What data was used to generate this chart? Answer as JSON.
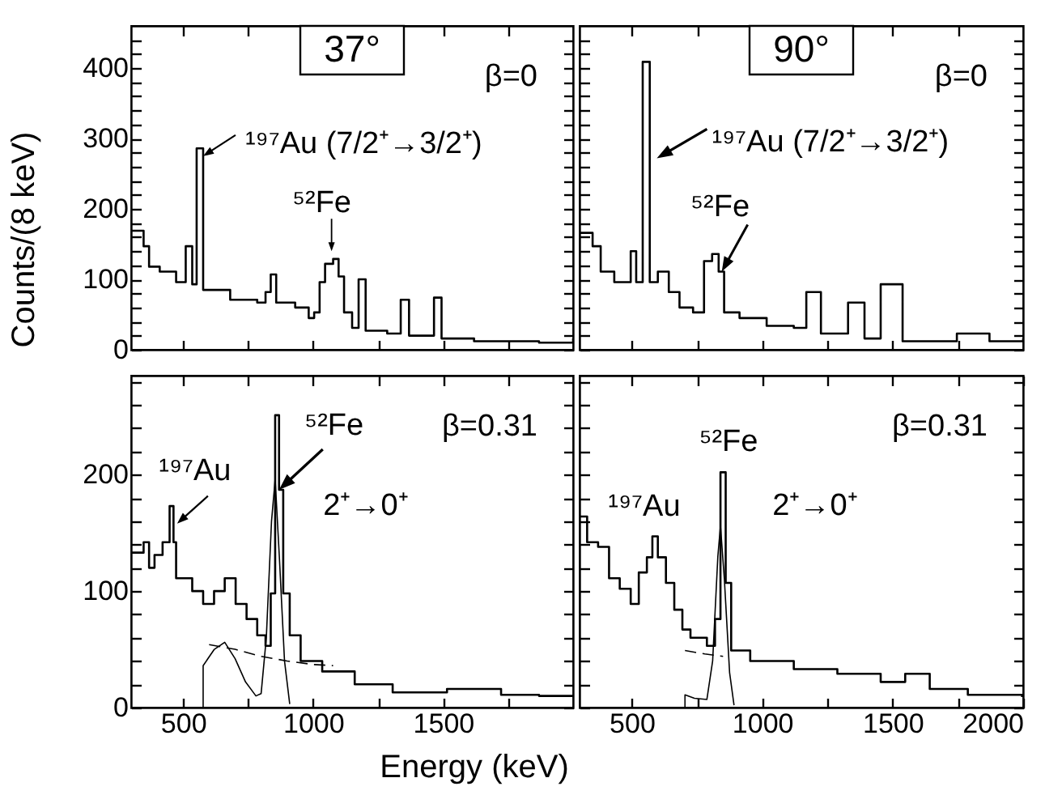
{
  "chart_data": [
    {
      "type": "step",
      "title": "37°",
      "ylabel": "Counts/(8 keV)",
      "xlim": [
        300,
        2000
      ],
      "ylim": [
        0,
        460
      ],
      "tick_labels": "y",
      "xticks": [
        500,
        {
          "value": 750,
          "label": null
        },
        1000,
        {
          "value": 1250,
          "label": null
        },
        1500,
        {
          "value": 1750,
          "label": null
        }
      ],
      "yticks": [
        0,
        {
          "value": 20,
          "label": null
        },
        {
          "value": 40,
          "label": null
        },
        {
          "value": 60,
          "label": null
        },
        {
          "value": 80,
          "label": null
        },
        100,
        {
          "value": 120,
          "label": null
        },
        {
          "value": 140,
          "label": null
        },
        {
          "value": 160,
          "label": null
        },
        {
          "value": 180,
          "label": null
        },
        200,
        {
          "value": 220,
          "label": null
        },
        {
          "value": 240,
          "label": null
        },
        {
          "value": 260,
          "label": null
        },
        {
          "value": 280,
          "label": null
        },
        300,
        {
          "value": 320,
          "label": null
        },
        {
          "value": 340,
          "label": null
        },
        {
          "value": 360,
          "label": null
        },
        {
          "value": 380,
          "label": null
        },
        400,
        {
          "value": 420,
          "label": null
        },
        {
          "value": 440,
          "label": null
        }
      ],
      "annotations": [
        "β=0",
        {
          "text": "¹⁹⁷Au (7/2⁺→3/2⁺)",
          "x": 577,
          "y": 275
        },
        {
          "text": "⁵²Fe",
          "x": 1071,
          "y": 140
        }
      ],
      "series": [
        {
          "color": "#000000",
          "line_style": "solid",
          "x": [
            300,
            348,
            369,
            410,
            473,
            510,
            535,
            552,
            577,
            681,
            785,
            817,
            837,
            858,
            931,
            983,
            1004,
            1025,
            1046,
            1077,
            1098,
            1119,
            1150,
            1175,
            1202,
            1285,
            1337,
            1369,
            1465,
            1494,
            1619,
            1744,
            1869,
            2000
          ],
          "values": [
            169,
            147,
            118,
            111,
            96,
            147,
            93,
            286,
            85,
            71,
            67,
            82,
            107,
            67,
            60,
            45,
            53,
            96,
            122,
            129,
            104,
            53,
            31,
            100,
            27,
            23,
            71,
            20,
            74,
            16,
            12,
            12,
            10,
            16
          ]
        }
      ]
    },
    {
      "type": "step",
      "title": "90°",
      "xlim": [
        300,
        2000
      ],
      "ylim": [
        0,
        460
      ],
      "tick_labels": false,
      "xticks": [
        500,
        {
          "value": 750,
          "label": null
        },
        1000,
        {
          "value": 1250,
          "label": null
        },
        1500,
        {
          "value": 1750,
          "label": null
        }
      ],
      "yticks": [
        0,
        {
          "value": 20,
          "label": null
        },
        {
          "value": 40,
          "label": null
        },
        {
          "value": 60,
          "label": null
        },
        {
          "value": 80,
          "label": null
        },
        100,
        {
          "value": 120,
          "label": null
        },
        {
          "value": 140,
          "label": null
        },
        {
          "value": 160,
          "label": null
        },
        {
          "value": 180,
          "label": null
        },
        200,
        {
          "value": 220,
          "label": null
        },
        {
          "value": 240,
          "label": null
        },
        {
          "value": 260,
          "label": null
        },
        {
          "value": 280,
          "label": null
        },
        300,
        {
          "value": 320,
          "label": null
        },
        {
          "value": 340,
          "label": null
        },
        {
          "value": 360,
          "label": null
        },
        {
          "value": 380,
          "label": null
        },
        400,
        {
          "value": 420,
          "label": null
        },
        {
          "value": 440,
          "label": null
        }
      ],
      "annotations": [
        "β=0",
        {
          "text": "¹⁹⁷Au (7/2⁺→3/2⁺)",
          "x": 596,
          "y": 272
        },
        {
          "text": "⁵²Fe",
          "x": 845,
          "y": 111
        }
      ],
      "series": [
        {
          "color": "#000000",
          "line_style": "solid",
          "x": [
            300,
            350,
            381,
            433,
            496,
            517,
            542,
            569,
            600,
            642,
            683,
            735,
            777,
            808,
            833,
            854,
            913,
            1017,
            1121,
            1169,
            1225,
            1329,
            1392,
            1454,
            1538,
            1642,
            1746,
            1871,
            2000
          ],
          "values": [
            166,
            147,
            111,
            96,
            140,
            96,
            409,
            96,
            111,
            82,
            60,
            53,
            126,
            136,
            111,
            53,
            45,
            34,
            31,
            82,
            23,
            67,
            16,
            93,
            12,
            12,
            23,
            12,
            16
          ]
        }
      ]
    },
    {
      "type": "step",
      "xlabel": "Energy (keV)",
      "xlim": [
        300,
        2000
      ],
      "ylim": [
        0,
        285
      ],
      "xticks": [
        500,
        {
          "value": 750,
          "label": null
        },
        1000,
        {
          "value": 1250,
          "label": null
        },
        1500,
        {
          "value": 1750,
          "label": null
        }
      ],
      "yticks": [
        0,
        {
          "value": 20,
          "label": null
        },
        {
          "value": 40,
          "label": null
        },
        {
          "value": 60,
          "label": null
        },
        {
          "value": 80,
          "label": null
        },
        100,
        {
          "value": 120,
          "label": null
        },
        {
          "value": 140,
          "label": null
        },
        {
          "value": 160,
          "label": null
        },
        {
          "value": 180,
          "label": null
        },
        200,
        {
          "value": 220,
          "label": null
        },
        {
          "value": 240,
          "label": null
        },
        {
          "value": 260,
          "label": null
        },
        {
          "value": 280,
          "label": null
        }
      ],
      "annotations": [
        "β=0.31",
        "2⁺→0⁺",
        {
          "text": "¹⁹⁷Au",
          "x": 477,
          "y": 158
        },
        {
          "text": "⁵²Fe",
          "x": 869,
          "y": 187
        }
      ],
      "series": [
        {
          "color": "#000000",
          "line_style": "solid",
          "x": [
            300,
            348,
            369,
            390,
            421,
            448,
            463,
            473,
            535,
            577,
            619,
            660,
            702,
            744,
            785,
            817,
            837,
            854,
            869,
            885,
            910,
            952,
            1035,
            1160,
            1306,
            1515,
            1723,
            1869,
            2000
          ],
          "values": [
            133,
            142,
            120,
            131,
            142,
            173,
            142,
            111,
            100,
            89,
            100,
            111,
            89,
            76,
            62,
            53,
            98,
            251,
            187,
            98,
            62,
            40,
            31,
            20,
            13,
            16,
            11,
            10,
            9
          ]
        },
        {
          "type": "line",
          "color": "#000000",
          "line_style": "solid",
          "x": [
            577,
            577,
            620,
            660,
            700,
            740,
            780,
            800,
            820,
            840,
            854,
            870,
            890,
            910
          ],
          "values": [
            0,
            36,
            50,
            56,
            42,
            22,
            10,
            12,
            60,
            160,
            196,
            130,
            40,
            3
          ]
        },
        {
          "type": "line",
          "color": "#000000",
          "line_style": "dashed",
          "x": [
            600,
            700,
            800,
            900,
            1000,
            1077
          ],
          "values": [
            54,
            50,
            44,
            40,
            37,
            36
          ]
        }
      ]
    },
    {
      "type": "step",
      "xlim": [
        300,
        2000
      ],
      "ylim": [
        0,
        285
      ],
      "tick_labels": "x",
      "xticks": [
        500,
        {
          "value": 750,
          "label": null
        },
        1000,
        {
          "value": 1250,
          "label": null
        },
        1500,
        {
          "value": 1750,
          "label": null
        },
        2000
      ],
      "yticks": [
        0,
        {
          "value": 20,
          "label": null
        },
        {
          "value": 40,
          "label": null
        },
        {
          "value": 60,
          "label": null
        },
        {
          "value": 80,
          "label": null
        },
        100,
        {
          "value": 120,
          "label": null
        },
        {
          "value": 140,
          "label": null
        },
        {
          "value": 160,
          "label": null
        },
        {
          "value": 180,
          "label": null
        },
        200,
        {
          "value": 220,
          "label": null
        },
        {
          "value": 240,
          "label": null
        },
        {
          "value": 260,
          "label": null
        },
        {
          "value": 280,
          "label": null
        }
      ],
      "annotations": [
        "β=0.31",
        "2⁺→0⁺",
        {
          "text": "¹⁹⁷Au",
          "x": 579,
          "y": 147
        },
        {
          "text": "⁵²Fe",
          "x": 840,
          "y": 202
        }
      ],
      "series": [
        {
          "color": "#000000",
          "line_style": "solid",
          "x": [
            300,
            329,
            371,
            413,
            454,
            496,
            527,
            558,
            579,
            600,
            631,
            663,
            694,
            725,
            788,
            819,
            840,
            860,
            881,
            954,
            1121,
            1288,
            1454,
            1548,
            1642,
            1788,
            1996
          ],
          "values": [
            164,
            142,
            138,
            111,
            102,
            89,
            116,
            129,
            147,
            129,
            107,
            84,
            67,
            60,
            53,
            76,
            202,
            107,
            49,
            40,
            33,
            29,
            22,
            29,
            16,
            11,
            9
          ]
        },
        {
          "type": "line",
          "color": "#000000",
          "line_style": "solid",
          "x": [
            704,
            704,
            740,
            788,
            810,
            830,
            840,
            855,
            875,
            892
          ],
          "values": [
            0,
            11,
            8,
            7,
            40,
            130,
            156,
            110,
            30,
            2
          ]
        },
        {
          "type": "line",
          "color": "#000000",
          "line_style": "dashed",
          "x": [
            704,
            780,
            850
          ],
          "values": [
            49,
            46,
            44
          ]
        }
      ]
    }
  ]
}
